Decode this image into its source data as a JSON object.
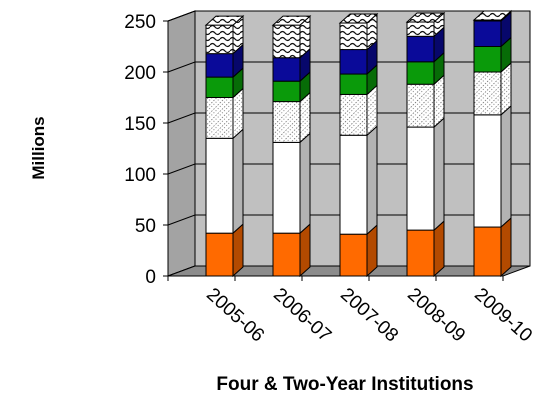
{
  "chart_data": {
    "type": "bar",
    "stacked": true,
    "three_d": true,
    "title": "",
    "xlabel": "Four & Two-Year Institutions",
    "ylabel": "Millions",
    "ylim": [
      0,
      250
    ],
    "yticks": [
      0,
      50,
      100,
      150,
      200,
      250
    ],
    "grid": true,
    "legend": "none",
    "categories": [
      "2005-06",
      "2006-07",
      "2007-08",
      "2008-09",
      "2009-10"
    ],
    "series": [
      {
        "fill": "#ff6a00",
        "pattern": "solid",
        "values": [
          42,
          42,
          41,
          45,
          48
        ]
      },
      {
        "fill": "#ffffff",
        "pattern": "solid",
        "values": [
          93,
          89,
          97,
          101,
          110
        ]
      },
      {
        "fill": "#ffffff",
        "pattern": "dots",
        "values": [
          40,
          40,
          40,
          42,
          42
        ]
      },
      {
        "fill": "#0a9a0a",
        "pattern": "solid",
        "values": [
          20,
          20,
          20,
          22,
          25
        ]
      },
      {
        "fill": "#0a0a99",
        "pattern": "solid",
        "values": [
          23,
          23,
          24,
          25,
          25
        ]
      },
      {
        "fill": "#ffffff",
        "pattern": "wave",
        "values": [
          28,
          32,
          26,
          14,
          1
        ]
      }
    ],
    "colors": {
      "plot_wall": "#c0c0c0",
      "plot_floor": "#8c8c8c",
      "grid": "#000000"
    }
  }
}
